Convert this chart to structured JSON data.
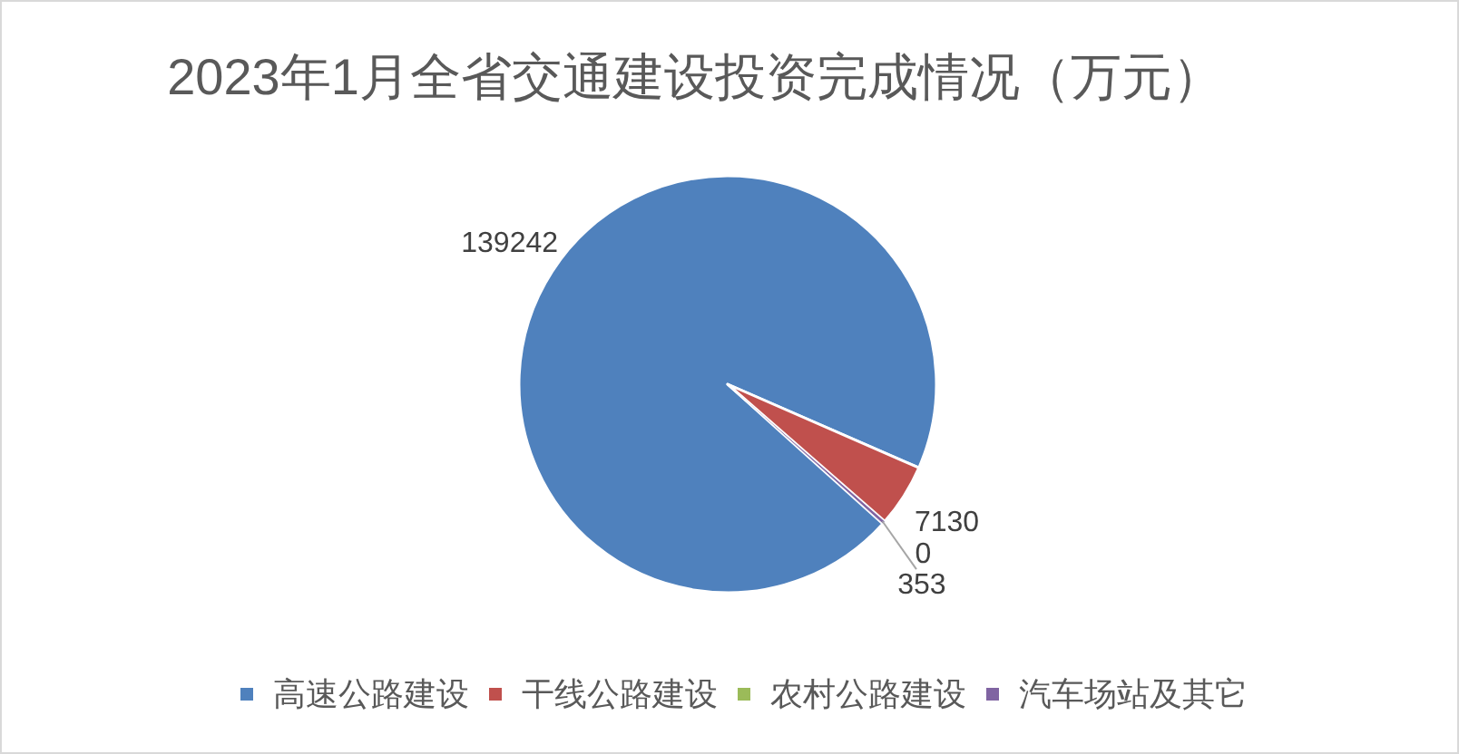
{
  "chart_data": {
    "type": "pie",
    "title": "2023年1月全省交通建设投资完成情况（万元）",
    "categories": [
      "高速公路建设",
      "干线公路建设",
      "农村公路建设",
      "汽车场站及其它"
    ],
    "values": [
      139242,
      7130,
      0,
      353
    ],
    "value_labels": [
      "139242",
      "7130",
      "0",
      "353"
    ],
    "colors": [
      "#4f81bd",
      "#c0504d",
      "#9bbb59",
      "#8064a2"
    ],
    "legend": "bottom"
  }
}
